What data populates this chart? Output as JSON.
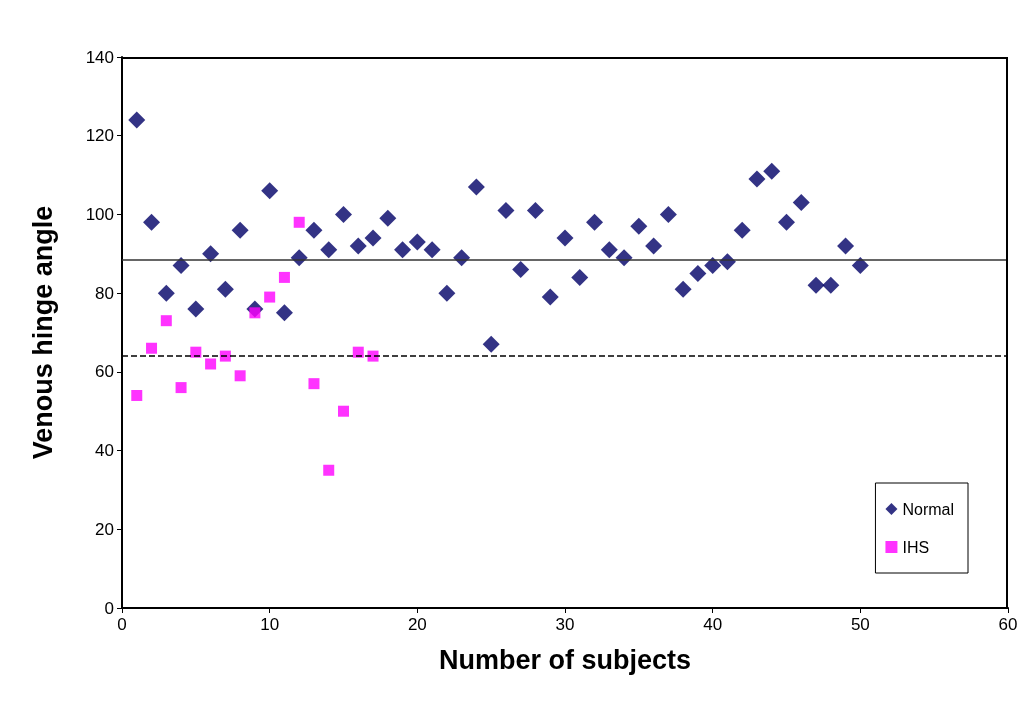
{
  "chart_data": {
    "type": "scatter",
    "xlabel": "Number of subjects",
    "ylabel": "Venous hinge angle",
    "xlim": [
      0,
      60
    ],
    "xticks": [
      0,
      10,
      20,
      30,
      40,
      50,
      60
    ],
    "ylim": [
      0,
      140
    ],
    "yticks": [
      0,
      20,
      40,
      60,
      80,
      100,
      120,
      140
    ],
    "grid": false,
    "legend": "bottom right",
    "series": [
      {
        "name": "Normal",
        "color": "#000066",
        "marker": "diamond",
        "x": [
          1,
          2,
          3,
          4,
          5,
          6,
          7,
          8,
          9,
          10,
          11,
          12,
          13,
          14,
          15,
          16,
          17,
          18,
          19,
          20,
          21,
          22,
          23,
          24,
          25,
          26,
          27,
          28,
          29,
          30,
          31,
          32,
          33,
          34,
          35,
          36,
          37,
          38,
          39,
          40,
          41,
          42,
          43,
          44,
          45,
          46,
          47,
          48,
          49,
          50
        ],
        "values": [
          124,
          98,
          80,
          87,
          76,
          90,
          81,
          96,
          76,
          106,
          75,
          89,
          96,
          91,
          100,
          92,
          94,
          99,
          91,
          93,
          91,
          80,
          89,
          107,
          67,
          101,
          86,
          101,
          79,
          94,
          84,
          98,
          91,
          89,
          97,
          92,
          100,
          81,
          85,
          87,
          88,
          96,
          109,
          111,
          98,
          103,
          82,
          82,
          92,
          87
        ]
      },
      {
        "name": "IHS",
        "color": "#ff00ff",
        "marker": "square",
        "x": [
          1,
          2,
          3,
          4,
          5,
          6,
          7,
          8,
          9,
          10,
          11,
          12,
          13,
          14,
          15,
          16,
          17
        ],
        "values": [
          54,
          66,
          73,
          56,
          65,
          62,
          64,
          59,
          75,
          79,
          84,
          98,
          57,
          35,
          50,
          65,
          64
        ]
      }
    ],
    "ref_lines": [
      {
        "axis": "y",
        "value": 88.5,
        "color": "#333333",
        "line_style": "solid"
      },
      {
        "axis": "y",
        "value": 64,
        "color": "#000000",
        "line_style": "dashed"
      }
    ]
  }
}
